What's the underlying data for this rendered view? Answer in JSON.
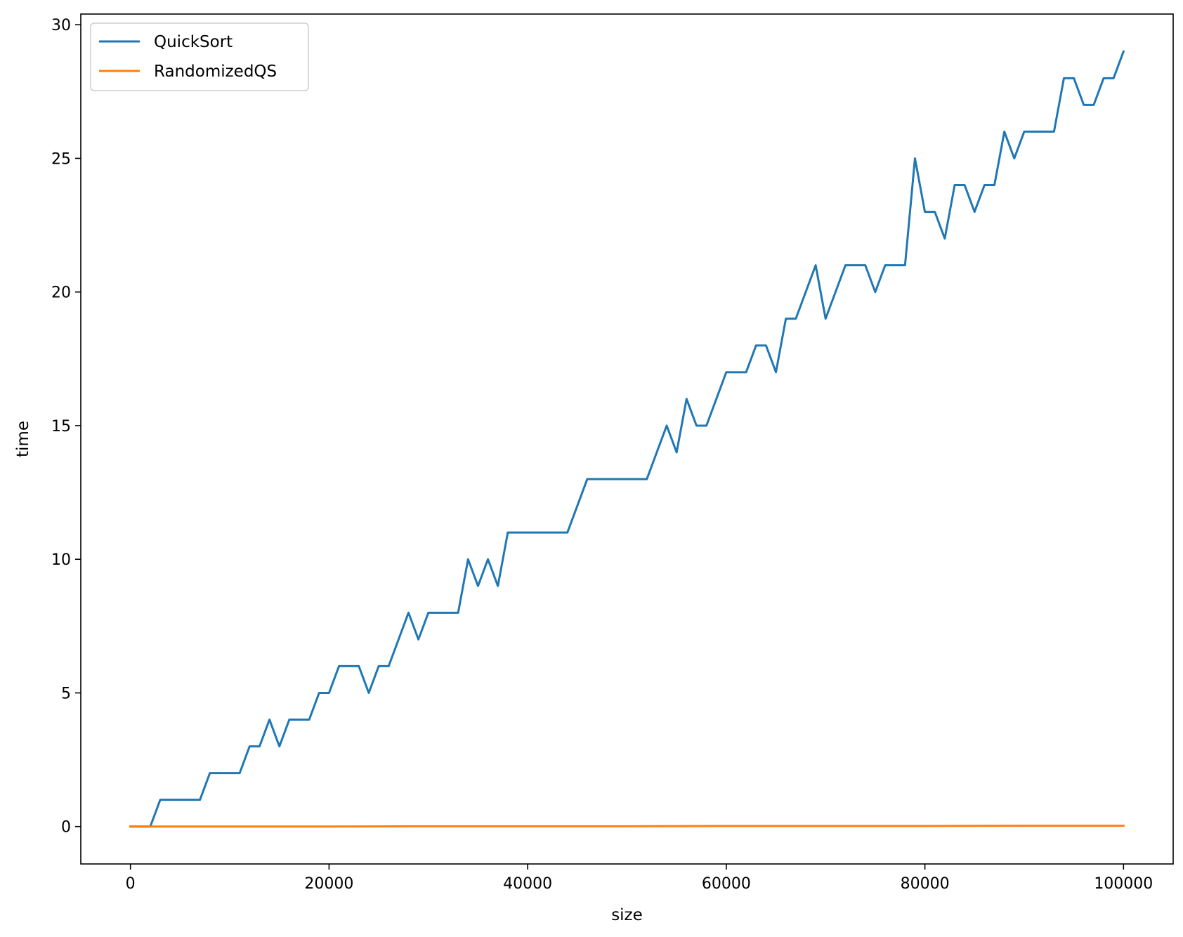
{
  "chart_data": {
    "type": "line",
    "title": "",
    "xlabel": "size",
    "ylabel": "time",
    "xlim": [
      -5000,
      105000
    ],
    "ylim": [
      -1.4,
      30.4
    ],
    "xticks": [
      0,
      20000,
      40000,
      60000,
      80000,
      100000
    ],
    "yticks": [
      0,
      5,
      10,
      15,
      20,
      25,
      30
    ],
    "grid": false,
    "legend_position": "upper-left",
    "series": [
      {
        "name": "QuickSort",
        "color": "#1f77b4",
        "x": [
          0,
          1000,
          2000,
          3000,
          4000,
          5000,
          6000,
          7000,
          8000,
          9000,
          10000,
          11000,
          12000,
          13000,
          14000,
          15000,
          16000,
          17000,
          18000,
          19000,
          20000,
          21000,
          22000,
          23000,
          24000,
          25000,
          26000,
          27000,
          28000,
          29000,
          30000,
          31000,
          32000,
          33000,
          34000,
          35000,
          36000,
          37000,
          38000,
          39000,
          40000,
          41000,
          42000,
          43000,
          44000,
          45000,
          46000,
          47000,
          48000,
          49000,
          50000,
          51000,
          52000,
          53000,
          54000,
          55000,
          56000,
          57000,
          58000,
          59000,
          60000,
          61000,
          62000,
          63000,
          64000,
          65000,
          66000,
          67000,
          68000,
          69000,
          70000,
          71000,
          72000,
          73000,
          74000,
          75000,
          76000,
          77000,
          78000,
          79000,
          80000,
          81000,
          82000,
          83000,
          84000,
          85000,
          86000,
          87000,
          88000,
          89000,
          90000,
          91000,
          92000,
          93000,
          94000,
          95000,
          96000,
          97000,
          98000,
          99000,
          100000
        ],
        "y": [
          0,
          0,
          0,
          1,
          1,
          1,
          1,
          1,
          2,
          2,
          2,
          2,
          3,
          3,
          4,
          3,
          4,
          4,
          4,
          5,
          5,
          6,
          6,
          6,
          5,
          6,
          6,
          7,
          8,
          7,
          8,
          8,
          8,
          8,
          10,
          9,
          10,
          9,
          11,
          11,
          11,
          11,
          11,
          11,
          11,
          12,
          13,
          13,
          13,
          13,
          13,
          13,
          13,
          14,
          15,
          14,
          16,
          15,
          15,
          16,
          17,
          17,
          17,
          18,
          18,
          17,
          19,
          19,
          20,
          21,
          19,
          20,
          21,
          21,
          21,
          20,
          21,
          21,
          21,
          25,
          23,
          23,
          22,
          24,
          24,
          23,
          24,
          24,
          26,
          25,
          26,
          26,
          26,
          26,
          28,
          28,
          27,
          27,
          28,
          28,
          29
        ]
      },
      {
        "name": "RandomizedQS",
        "color": "#ff7f0e",
        "x": [
          0,
          10000,
          20000,
          30000,
          40000,
          50000,
          60000,
          70000,
          80000,
          90000,
          100000
        ],
        "y": [
          0,
          0,
          0,
          0.01,
          0.01,
          0.01,
          0.02,
          0.02,
          0.02,
          0.03,
          0.03
        ]
      }
    ]
  }
}
